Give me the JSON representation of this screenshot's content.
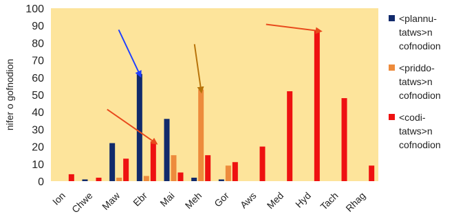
{
  "chart_data": {
    "type": "bar",
    "categories": [
      "Ion",
      "Chwe",
      "Maw",
      "Ebr",
      "Mai",
      "Meh",
      "Gor",
      "Aws",
      "Med",
      "Hyd",
      "Tach",
      "Rhag"
    ],
    "series": [
      {
        "name": "<plannu-tatws>n cofnodion",
        "color": "#112a6b",
        "values": [
          0,
          1,
          22,
          62,
          36,
          2,
          1,
          0,
          0,
          0,
          0,
          0
        ]
      },
      {
        "name": "<priddo-tatws>n cofnodion",
        "color": "#ed8b3c",
        "values": [
          0,
          0,
          2,
          3,
          15,
          53,
          9,
          0,
          0,
          0,
          0,
          0
        ]
      },
      {
        "name": "<codi-tatws>n cofnodion",
        "color": "#ee1111",
        "values": [
          4,
          2,
          13,
          23,
          5,
          15,
          11,
          20,
          52,
          87,
          48,
          9
        ]
      }
    ],
    "legend_lines": [
      [
        "<plannu-",
        "tatws>n",
        "cofnodion"
      ],
      [
        "<priddo-",
        "tatws>n",
        "cofnodion"
      ],
      [
        "<codi-",
        "tatws>n",
        "cofnodion"
      ]
    ],
    "title": "",
    "xlabel": "",
    "ylabel": "nifer o gofnodion",
    "ylim": [
      0,
      100
    ],
    "yticks": [
      0,
      10,
      20,
      30,
      40,
      50,
      60,
      70,
      80,
      90,
      100
    ],
    "grid": false,
    "legend_position": "right",
    "plot_background": "#fde49b",
    "annotations": [
      {
        "type": "arrow",
        "color": "#1f3fff",
        "target_category": "Ebr",
        "target_series": 0
      },
      {
        "type": "arrow",
        "color": "#e84a1c",
        "target_category": "Ebr",
        "target_series": 2
      },
      {
        "type": "arrow",
        "color": "#b8730a",
        "target_category": "Meh",
        "target_series": 1
      },
      {
        "type": "arrow",
        "color": "#e84a1c",
        "target_category": "Hyd",
        "target_series": 2
      }
    ]
  }
}
